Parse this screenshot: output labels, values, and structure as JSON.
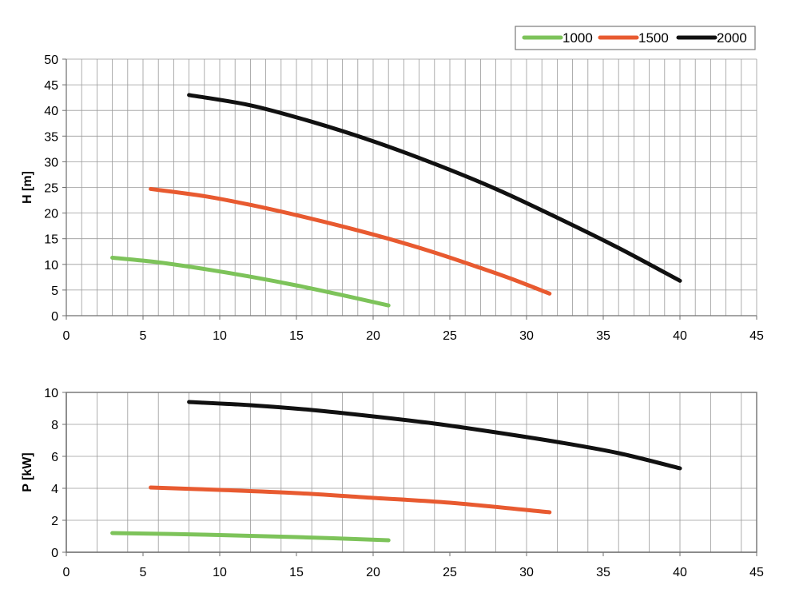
{
  "chart_data": [
    {
      "type": "line",
      "title": "",
      "xlabel": "",
      "ylabel": "H [m]",
      "xlim": [
        0,
        45
      ],
      "ylim": [
        0,
        50
      ],
      "xticks": [
        0,
        5,
        10,
        15,
        20,
        25,
        30,
        35,
        40,
        45
      ],
      "yticks": [
        0,
        5,
        10,
        15,
        20,
        25,
        30,
        35,
        40,
        45,
        50
      ],
      "grid": "vertical every 1, horizontal every 5",
      "legend": "top-right",
      "series": [
        {
          "name": "1000",
          "color": "#7dc35a",
          "x": [
            3,
            6,
            9,
            12,
            15,
            18,
            21
          ],
          "y": [
            11.3,
            10.4,
            9.1,
            7.6,
            5.9,
            4.0,
            2.0
          ]
        },
        {
          "name": "1500",
          "color": "#e85a30",
          "x": [
            5.5,
            9,
            12,
            15,
            18,
            21,
            24,
            27,
            29,
            31.5
          ],
          "y": [
            24.7,
            23.3,
            21.6,
            19.6,
            17.4,
            15.0,
            12.3,
            9.3,
            7.2,
            4.3
          ]
        },
        {
          "name": "2000",
          "color": "#111111",
          "x": [
            8,
            12,
            16,
            20,
            24,
            28,
            32,
            36,
            40
          ],
          "y": [
            43.0,
            41.0,
            37.8,
            34.0,
            29.6,
            24.7,
            19.1,
            13.2,
            6.8
          ]
        }
      ]
    },
    {
      "type": "line",
      "title": "",
      "xlabel": "",
      "ylabel": "P [kW]",
      "xlim": [
        0,
        45
      ],
      "ylim": [
        0,
        10
      ],
      "xticks": [
        0,
        5,
        10,
        15,
        20,
        25,
        30,
        35,
        40,
        45
      ],
      "yticks": [
        0,
        2,
        4,
        6,
        8,
        10
      ],
      "grid": "vertical every 2, horizontal every 2",
      "legend": "none",
      "series": [
        {
          "name": "1000",
          "color": "#7dc35a",
          "x": [
            3,
            9,
            15,
            21
          ],
          "y": [
            1.2,
            1.1,
            0.95,
            0.75
          ]
        },
        {
          "name": "1500",
          "color": "#e85a30",
          "x": [
            5.5,
            10,
            15,
            20,
            25,
            31.5
          ],
          "y": [
            4.05,
            3.9,
            3.7,
            3.4,
            3.1,
            2.5
          ]
        },
        {
          "name": "2000",
          "color": "#111111",
          "x": [
            8,
            12,
            16,
            20,
            24,
            28,
            32,
            36,
            40
          ],
          "y": [
            9.4,
            9.2,
            8.9,
            8.5,
            8.05,
            7.5,
            6.9,
            6.2,
            5.25
          ]
        }
      ]
    }
  ]
}
